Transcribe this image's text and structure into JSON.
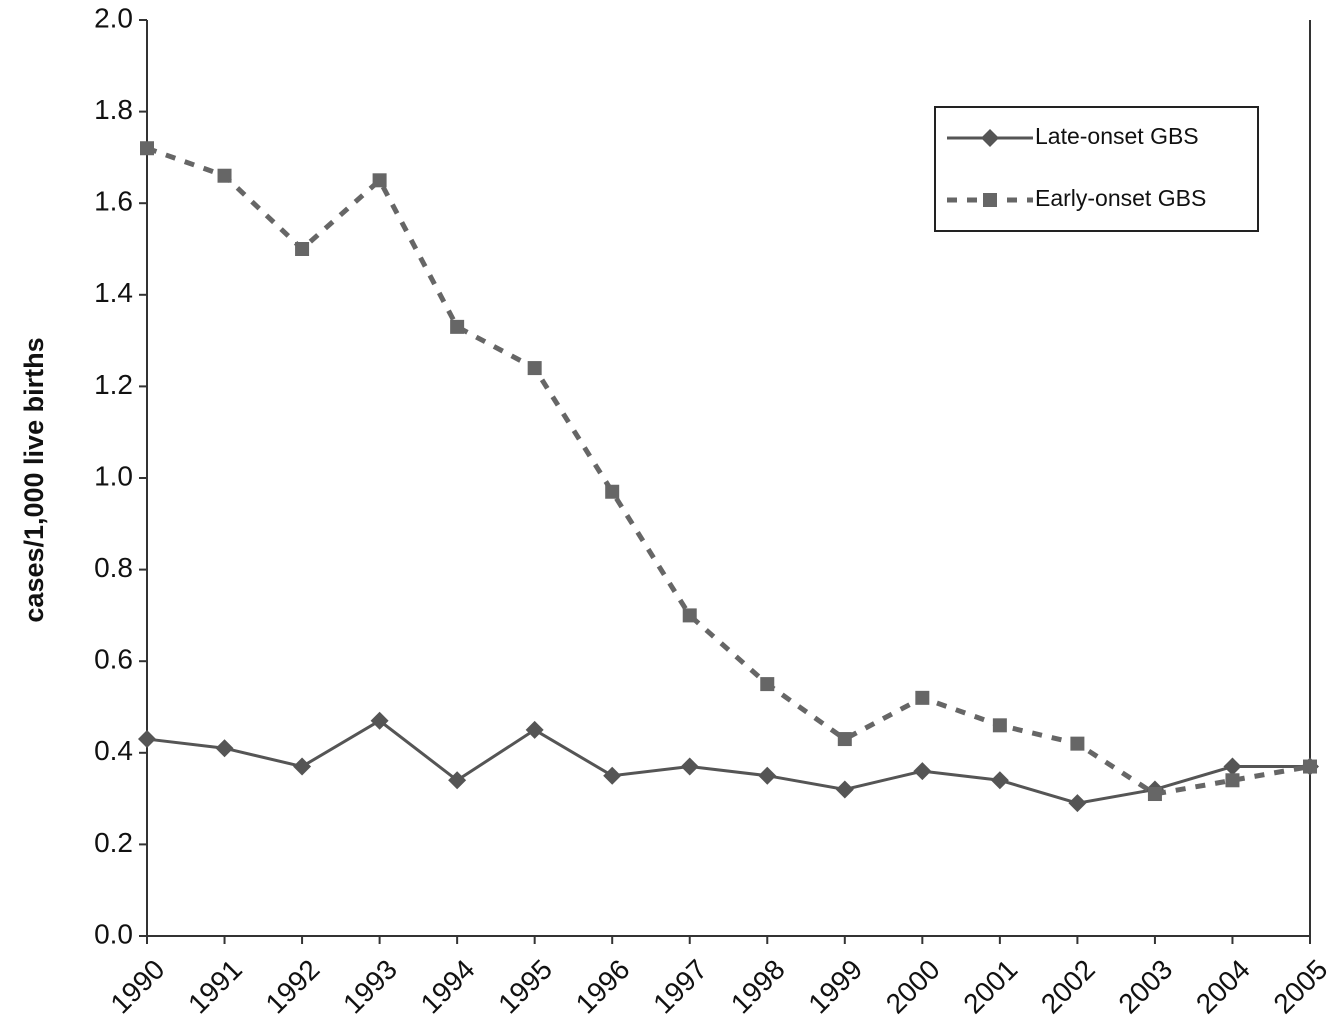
{
  "chart_data": {
    "type": "line",
    "ylabel": "cases/1,000 live births",
    "categories": [
      "1990",
      "1991",
      "1992",
      "1993",
      "1994",
      "1995",
      "1996",
      "1997",
      "1998",
      "1999",
      "2000",
      "2001",
      "2002",
      "2003",
      "2004",
      "2005"
    ],
    "series": [
      {
        "name": "Late-onset GBS",
        "color": "#555555",
        "line": "solid",
        "marker": "diamond",
        "values": [
          0.43,
          0.41,
          0.37,
          0.47,
          0.34,
          0.45,
          0.35,
          0.37,
          0.35,
          0.32,
          0.36,
          0.34,
          0.29,
          0.32,
          0.37,
          0.37
        ]
      },
      {
        "name": "Early-onset GBS",
        "color": "#666666",
        "line": "dashed",
        "marker": "square",
        "values": [
          1.72,
          1.66,
          1.5,
          1.65,
          1.33,
          1.24,
          0.97,
          0.7,
          0.55,
          0.43,
          0.52,
          0.46,
          0.42,
          0.31,
          0.34,
          0.37
        ]
      }
    ],
    "ylim": [
      0,
      2
    ],
    "yticks": [
      {
        "value": 0,
        "label": "0.0"
      },
      0.2,
      0.4,
      0.6,
      0.8,
      {
        "value": 1,
        "label": "1.0"
      },
      1.2,
      1.4,
      1.6,
      1.8,
      {
        "value": 2,
        "label": "2.0"
      }
    ],
    "grid": false,
    "legend": "upper right"
  }
}
